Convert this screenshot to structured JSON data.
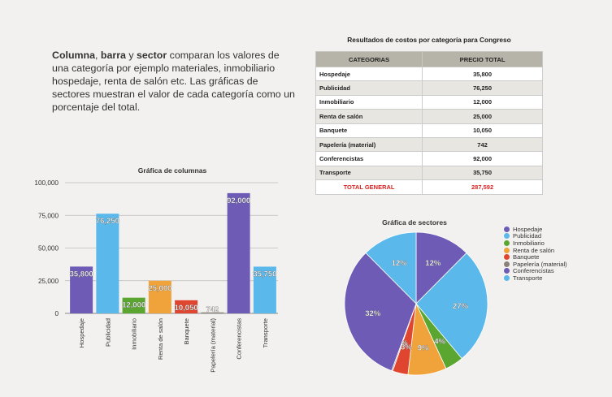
{
  "intro": {
    "b1": "Columna",
    "t1": ", ",
    "b2": "barra",
    "t2": " y ",
    "b3": "sector",
    "t3": " comparan los valores de una categoría por ejemplo materiales, inmobiliario hospedaje, renta de salón etc. Las gráficas de sectores muestran el valor de cada categoría como un porcentaje del total."
  },
  "table": {
    "title": "Resultados de costos por categoría para Congreso",
    "headers": [
      "CATEGORIAS",
      "PRECIO TOTAL"
    ],
    "rows": [
      {
        "cat": "Hospedaje",
        "price": "35,800"
      },
      {
        "cat": "Publicidad",
        "price": "76,250"
      },
      {
        "cat": "Inmobiliario",
        "price": "12,000"
      },
      {
        "cat": "Renta de salón",
        "price": "25,000"
      },
      {
        "cat": "Banquete",
        "price": "10,050"
      },
      {
        "cat": "Papelería (material)",
        "price": "742"
      },
      {
        "cat": "Conferencistas",
        "price": "92,000"
      },
      {
        "cat": "Transporte",
        "price": "35,750"
      }
    ],
    "total_label": "TOTAL GENERAL",
    "total_value": "287,592"
  },
  "chart_data": [
    {
      "type": "bar",
      "title": "Gráfica de columnas",
      "categories": [
        "Hospedaje",
        "Publicidad",
        "Inmobiliario",
        "Renta de salón",
        "Banquete",
        "Papelería (material)",
        "Conferencistas",
        "Transporte"
      ],
      "values": [
        35800,
        76250,
        12000,
        25000,
        10050,
        742,
        92000,
        35750
      ],
      "labels": [
        "35,800",
        "76,250",
        "12,000",
        "25,000",
        "10,050",
        "742",
        "92,000",
        "35,750"
      ],
      "colors": [
        "#6e5bb5",
        "#5ab8ea",
        "#5aa630",
        "#f0a33a",
        "#e0462f",
        "#8a8178",
        "#6e5bb5",
        "#5ab8ea"
      ],
      "yticks": [
        0,
        25000,
        50000,
        75000,
        100000
      ],
      "ytick_labels": [
        "0",
        "25,000",
        "50,000",
        "75,000",
        "100,000"
      ],
      "ylim": [
        0,
        100000
      ],
      "xlabel": "",
      "ylabel": "",
      "grid": true
    },
    {
      "type": "pie",
      "title": "Gráfica de sectores",
      "labels": [
        "Hospedaje",
        "Publicidad",
        "Inmobiliario",
        "Renta de salón",
        "Banquete",
        "Papelería (material)",
        "Conferencistas",
        "Transporte"
      ],
      "legend_labels": [
        "Hospedaje",
        "Publicidad",
        "Inmobiliario",
        " Renta de salón",
        "Banquete",
        "Papelería (material)",
        "Conferencistas",
        "Transporte"
      ],
      "values": [
        35800,
        76250,
        12000,
        25000,
        10050,
        742,
        92000,
        35750
      ],
      "percent_labels": [
        "12%",
        "27%",
        "4%",
        "9%",
        "3%",
        "0%",
        "32%",
        "12%"
      ],
      "colors": [
        "#6e5bb5",
        "#5ab8ea",
        "#5aa630",
        "#f0a33a",
        "#e0462f",
        "#8a8178",
        "#6e5bb5",
        "#5ab8ea"
      ],
      "legend": "right"
    }
  ]
}
